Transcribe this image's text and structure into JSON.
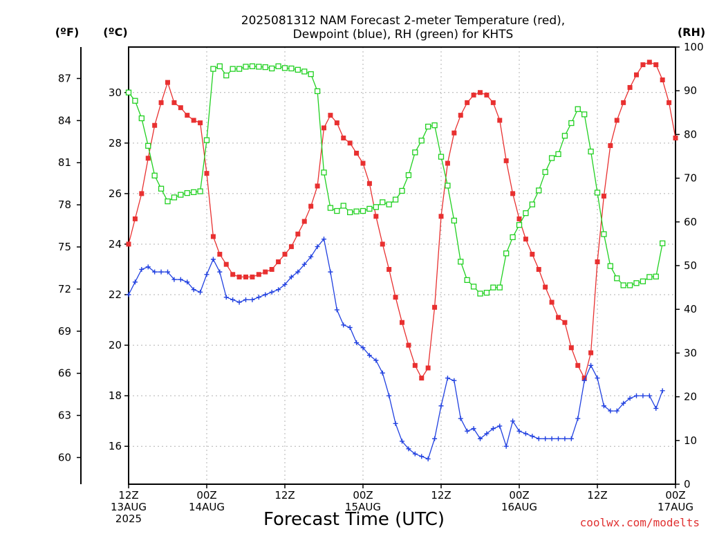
{
  "chart_data": {
    "type": "line",
    "title_line1": "2025081312 NAM Forecast 2-meter Temperature (red),",
    "title_line2": "Dewpoint (blue), RH (green) for KHTS",
    "xlabel": "Forecast Time (UTC)",
    "credit": "coolwx.com/modelts",
    "unit_labels": {
      "fahrenheit": "(ºF)",
      "celsius": "(ºC)",
      "rh": "(RH)"
    },
    "x_hours": [
      0,
      84
    ],
    "ylim_celsius": [
      14.5,
      31.8
    ],
    "ylim_rh": [
      0,
      100
    ],
    "celsius_ticks": [
      16,
      18,
      20,
      22,
      24,
      26,
      28,
      30
    ],
    "fahrenheit_ticks": [
      60,
      63,
      66,
      69,
      72,
      75,
      78,
      81,
      84,
      87
    ],
    "rh_ticks": [
      0,
      10,
      20,
      30,
      40,
      50,
      60,
      70,
      80,
      90,
      100
    ],
    "x_ticks": [
      {
        "hour": 0,
        "line1": "12Z",
        "line2": "13AUG",
        "line3": "2025"
      },
      {
        "hour": 12,
        "line1": "00Z",
        "line2": "14AUG",
        "line3": ""
      },
      {
        "hour": 24,
        "line1": "12Z",
        "line2": "",
        "line3": ""
      },
      {
        "hour": 36,
        "line1": "00Z",
        "line2": "15AUG",
        "line3": ""
      },
      {
        "hour": 48,
        "line1": "12Z",
        "line2": "",
        "line3": ""
      },
      {
        "hour": 60,
        "line1": "00Z",
        "line2": "16AUG",
        "line3": ""
      },
      {
        "hour": 72,
        "line1": "12Z",
        "line2": "",
        "line3": ""
      },
      {
        "hour": 84,
        "line1": "00Z",
        "line2": "17AUG",
        "line3": ""
      }
    ],
    "grid": true,
    "series": [
      {
        "name": "2-meter Temperature",
        "color": "#e83030",
        "marker": "filled-square",
        "axis": "celsius",
        "points": [
          [
            0,
            24.0
          ],
          [
            1,
            25.0
          ],
          [
            2,
            26.0
          ],
          [
            3,
            27.4
          ],
          [
            4,
            28.7
          ],
          [
            5,
            29.6
          ],
          [
            6,
            30.4
          ],
          [
            7,
            29.6
          ],
          [
            8,
            29.4
          ],
          [
            9,
            29.1
          ],
          [
            10,
            28.9
          ],
          [
            11,
            28.8
          ],
          [
            12,
            26.8
          ],
          [
            13,
            24.3
          ],
          [
            14,
            23.6
          ],
          [
            15,
            23.2
          ],
          [
            16,
            22.8
          ],
          [
            17,
            22.7
          ],
          [
            18,
            22.7
          ],
          [
            19,
            22.7
          ],
          [
            20,
            22.8
          ],
          [
            21,
            22.9
          ],
          [
            22,
            23.0
          ],
          [
            23,
            23.3
          ],
          [
            24,
            23.6
          ],
          [
            25,
            23.9
          ],
          [
            26,
            24.4
          ],
          [
            27,
            24.9
          ],
          [
            28,
            25.5
          ],
          [
            29,
            26.3
          ],
          [
            30,
            28.6
          ],
          [
            31,
            29.1
          ],
          [
            32,
            28.8
          ],
          [
            33,
            28.2
          ],
          [
            34,
            28.0
          ],
          [
            35,
            27.6
          ],
          [
            36,
            27.2
          ],
          [
            37,
            26.4
          ],
          [
            38,
            25.1
          ],
          [
            39,
            24.0
          ],
          [
            40,
            23.0
          ],
          [
            41,
            21.9
          ],
          [
            42,
            20.9
          ],
          [
            43,
            20.0
          ],
          [
            44,
            19.2
          ],
          [
            45,
            18.7
          ],
          [
            46,
            19.1
          ],
          [
            47,
            21.5
          ],
          [
            48,
            25.1
          ],
          [
            49,
            27.2
          ],
          [
            50,
            28.4
          ],
          [
            51,
            29.1
          ],
          [
            52,
            29.6
          ],
          [
            53,
            29.9
          ],
          [
            54,
            30.0
          ],
          [
            55,
            29.9
          ],
          [
            56,
            29.6
          ],
          [
            57,
            28.9
          ],
          [
            58,
            27.3
          ],
          [
            59,
            26.0
          ],
          [
            60,
            25.0
          ],
          [
            61,
            24.2
          ],
          [
            62,
            23.6
          ],
          [
            63,
            23.0
          ],
          [
            64,
            22.3
          ],
          [
            65,
            21.7
          ],
          [
            66,
            21.1
          ],
          [
            67,
            20.9
          ],
          [
            68,
            19.9
          ],
          [
            69,
            19.2
          ],
          [
            70,
            18.7
          ],
          [
            71,
            19.7
          ],
          [
            72,
            23.3
          ],
          [
            73,
            25.9
          ],
          [
            74,
            27.9
          ],
          [
            75,
            28.9
          ],
          [
            76,
            29.6
          ],
          [
            77,
            30.2
          ],
          [
            78,
            30.7
          ],
          [
            79,
            31.1
          ],
          [
            80,
            31.2
          ],
          [
            81,
            31.1
          ],
          [
            82,
            30.5
          ],
          [
            83,
            29.6
          ],
          [
            84,
            28.2
          ]
        ]
      },
      {
        "name": "Dewpoint",
        "color": "#2040e0",
        "marker": "plus",
        "axis": "celsius",
        "points": [
          [
            0,
            22.0
          ],
          [
            1,
            22.5
          ],
          [
            2,
            23.0
          ],
          [
            3,
            23.1
          ],
          [
            4,
            22.9
          ],
          [
            5,
            22.9
          ],
          [
            6,
            22.9
          ],
          [
            7,
            22.6
          ],
          [
            8,
            22.6
          ],
          [
            9,
            22.5
          ],
          [
            10,
            22.2
          ],
          [
            11,
            22.1
          ],
          [
            12,
            22.8
          ],
          [
            13,
            23.4
          ],
          [
            14,
            22.9
          ],
          [
            15,
            21.9
          ],
          [
            16,
            21.8
          ],
          [
            17,
            21.7
          ],
          [
            18,
            21.8
          ],
          [
            19,
            21.8
          ],
          [
            20,
            21.9
          ],
          [
            21,
            22.0
          ],
          [
            22,
            22.1
          ],
          [
            23,
            22.2
          ],
          [
            24,
            22.4
          ],
          [
            25,
            22.7
          ],
          [
            26,
            22.9
          ],
          [
            27,
            23.2
          ],
          [
            28,
            23.5
          ],
          [
            29,
            23.9
          ],
          [
            30,
            24.2
          ],
          [
            31,
            22.9
          ],
          [
            32,
            21.4
          ],
          [
            33,
            20.8
          ],
          [
            34,
            20.7
          ],
          [
            35,
            20.1
          ],
          [
            36,
            19.9
          ],
          [
            37,
            19.6
          ],
          [
            38,
            19.4
          ],
          [
            39,
            18.9
          ],
          [
            40,
            18.0
          ],
          [
            41,
            16.9
          ],
          [
            42,
            16.2
          ],
          [
            43,
            15.9
          ],
          [
            44,
            15.7
          ],
          [
            45,
            15.6
          ],
          [
            46,
            15.5
          ],
          [
            47,
            16.3
          ],
          [
            48,
            17.6
          ],
          [
            49,
            18.7
          ],
          [
            50,
            18.6
          ],
          [
            51,
            17.1
          ],
          [
            52,
            16.6
          ],
          [
            53,
            16.7
          ],
          [
            54,
            16.3
          ],
          [
            55,
            16.5
          ],
          [
            56,
            16.7
          ],
          [
            57,
            16.8
          ],
          [
            58,
            16.0
          ],
          [
            59,
            17.0
          ],
          [
            60,
            16.6
          ],
          [
            61,
            16.5
          ],
          [
            62,
            16.4
          ],
          [
            63,
            16.3
          ],
          [
            64,
            16.3
          ],
          [
            65,
            16.3
          ],
          [
            66,
            16.3
          ],
          [
            67,
            16.3
          ],
          [
            68,
            16.3
          ],
          [
            69,
            17.1
          ],
          [
            70,
            18.6
          ],
          [
            71,
            19.2
          ],
          [
            72,
            18.7
          ],
          [
            73,
            17.6
          ],
          [
            74,
            17.4
          ],
          [
            75,
            17.4
          ],
          [
            76,
            17.7
          ],
          [
            77,
            17.9
          ],
          [
            78,
            18.0
          ],
          [
            79,
            18.0
          ],
          [
            80,
            18.0
          ],
          [
            81,
            17.5
          ],
          [
            82,
            18.2
          ]
        ]
      },
      {
        "name": "RH",
        "color": "#20d020",
        "marker": "open-square",
        "axis": "rh",
        "points": [
          [
            0,
            89.6
          ],
          [
            1,
            87.7
          ],
          [
            2,
            83.7
          ],
          [
            3,
            77.4
          ],
          [
            4,
            70.6
          ],
          [
            5,
            67.6
          ],
          [
            6,
            64.7
          ],
          [
            7,
            65.6
          ],
          [
            8,
            66.2
          ],
          [
            9,
            66.6
          ],
          [
            10,
            66.8
          ],
          [
            11,
            67.0
          ],
          [
            12,
            78.7
          ],
          [
            13,
            95.0
          ],
          [
            14,
            95.6
          ],
          [
            15,
            93.5
          ],
          [
            16,
            95.0
          ],
          [
            17,
            95.0
          ],
          [
            18,
            95.5
          ],
          [
            19,
            95.6
          ],
          [
            20,
            95.5
          ],
          [
            21,
            95.4
          ],
          [
            22,
            95.1
          ],
          [
            23,
            95.6
          ],
          [
            24,
            95.2
          ],
          [
            25,
            95.1
          ],
          [
            26,
            94.8
          ],
          [
            27,
            94.4
          ],
          [
            28,
            93.8
          ],
          [
            29,
            89.9
          ],
          [
            30,
            71.3
          ],
          [
            31,
            63.2
          ],
          [
            32,
            62.5
          ],
          [
            33,
            63.7
          ],
          [
            34,
            62.2
          ],
          [
            35,
            62.4
          ],
          [
            36,
            62.5
          ],
          [
            37,
            63.0
          ],
          [
            38,
            63.4
          ],
          [
            39,
            64.5
          ],
          [
            40,
            64.0
          ],
          [
            41,
            65.1
          ],
          [
            42,
            67.1
          ],
          [
            43,
            70.7
          ],
          [
            44,
            75.9
          ],
          [
            45,
            78.6
          ],
          [
            46,
            81.8
          ],
          [
            47,
            82.1
          ],
          [
            48,
            74.9
          ],
          [
            49,
            68.3
          ],
          [
            50,
            60.3
          ],
          [
            51,
            50.9
          ],
          [
            52,
            46.7
          ],
          [
            53,
            45.2
          ],
          [
            54,
            43.6
          ],
          [
            55,
            43.8
          ],
          [
            56,
            45.0
          ],
          [
            57,
            45.0
          ],
          [
            58,
            52.8
          ],
          [
            59,
            56.5
          ],
          [
            60,
            59.3
          ],
          [
            61,
            62.0
          ],
          [
            62,
            64.0
          ],
          [
            63,
            67.2
          ],
          [
            64,
            71.4
          ],
          [
            65,
            74.6
          ],
          [
            66,
            75.5
          ],
          [
            67,
            79.7
          ],
          [
            68,
            82.6
          ],
          [
            69,
            85.8
          ],
          [
            70,
            84.6
          ],
          [
            71,
            76.1
          ],
          [
            72,
            66.7
          ],
          [
            73,
            57.2
          ],
          [
            74,
            49.9
          ],
          [
            75,
            47.1
          ],
          [
            76,
            45.5
          ],
          [
            77,
            45.5
          ],
          [
            78,
            46.0
          ],
          [
            79,
            46.4
          ],
          [
            80,
            47.4
          ],
          [
            81,
            47.5
          ],
          [
            82,
            55.1
          ]
        ]
      }
    ]
  }
}
